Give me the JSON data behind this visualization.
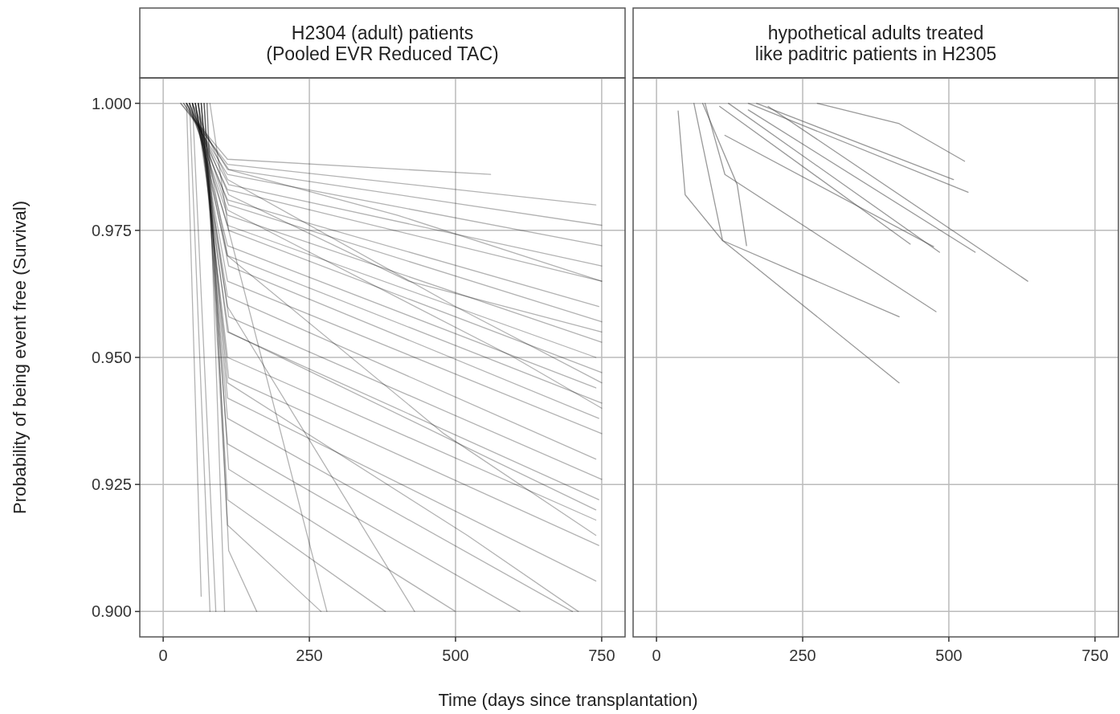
{
  "chart_data": [
    {
      "type": "line",
      "title": "H2304 (adult) patients\n(Pooled EVR Reduced TAC)",
      "xlabel": "Time (days since transplantation)",
      "ylabel": "Probability of being event free (Survival)",
      "xlim": [
        -40,
        790
      ],
      "ylim": [
        0.895,
        1.005
      ],
      "xticks": [
        0,
        250,
        500,
        750
      ],
      "yticks": [
        {
          "value": 0.9,
          "label": "0.900"
        },
        {
          "value": 0.925,
          "label": "0.925"
        },
        {
          "value": 0.95,
          "label": "0.950"
        },
        {
          "value": 0.975,
          "label": "0.975"
        },
        {
          "value": 1,
          "label": "1.000"
        }
      ],
      "grid": true,
      "series": [
        {
          "color": "#000000",
          "x": [
            30,
            110,
            560
          ],
          "values": [
            1,
            0.989,
            0.986
          ]
        },
        {
          "color": "#000000",
          "x": [
            30,
            110,
            740
          ],
          "values": [
            1,
            0.988,
            0.98
          ]
        },
        {
          "color": "#000000",
          "x": [
            35,
            112,
            750
          ],
          "values": [
            1,
            0.987,
            0.976
          ]
        },
        {
          "color": "#000000",
          "x": [
            35,
            110,
            750
          ],
          "values": [
            1,
            0.986,
            0.972
          ]
        },
        {
          "color": "#000000",
          "x": [
            40,
            112,
            750
          ],
          "values": [
            1,
            0.984,
            0.968
          ]
        },
        {
          "color": "#000000",
          "x": [
            40,
            110,
            750
          ],
          "values": [
            1,
            0.983,
            0.965
          ]
        },
        {
          "color": "#000000",
          "x": [
            40,
            110,
            745
          ],
          "values": [
            1,
            0.981,
            0.96
          ]
        },
        {
          "color": "#000000",
          "x": [
            45,
            112,
            750
          ],
          "values": [
            1,
            0.98,
            0.957
          ]
        },
        {
          "color": "#000000",
          "x": [
            45,
            110,
            750
          ],
          "values": [
            1,
            0.978,
            0.953
          ]
        },
        {
          "color": "#000000",
          "x": [
            45,
            110,
            740
          ],
          "values": [
            1,
            0.976,
            0.95
          ]
        },
        {
          "color": "#000000",
          "x": [
            50,
            112,
            750
          ],
          "values": [
            1,
            0.975,
            0.947
          ]
        },
        {
          "color": "#000000",
          "x": [
            50,
            110,
            740
          ],
          "values": [
            1,
            0.972,
            0.944
          ]
        },
        {
          "color": "#000000",
          "x": [
            50,
            110,
            750
          ],
          "values": [
            1,
            0.97,
            0.941
          ]
        },
        {
          "color": "#000000",
          "x": [
            55,
            112,
            745
          ],
          "values": [
            1,
            0.968,
            0.938
          ]
        },
        {
          "color": "#000000",
          "x": [
            55,
            110,
            750
          ],
          "values": [
            1,
            0.965,
            0.935
          ]
        },
        {
          "color": "#000000",
          "x": [
            55,
            110,
            740
          ],
          "values": [
            1,
            0.962,
            0.93
          ]
        },
        {
          "color": "#000000",
          "x": [
            60,
            112,
            750
          ],
          "values": [
            1,
            0.958,
            0.926
          ]
        },
        {
          "color": "#000000",
          "x": [
            60,
            110,
            745
          ],
          "values": [
            1,
            0.955,
            0.922
          ]
        },
        {
          "color": "#000000",
          "x": [
            60,
            110,
            740
          ],
          "values": [
            1,
            0.95,
            0.918
          ]
        },
        {
          "color": "#000000",
          "x": [
            60,
            112,
            745
          ],
          "values": [
            1,
            0.946,
            0.913
          ]
        },
        {
          "color": "#000000",
          "x": [
            65,
            110,
            740
          ],
          "values": [
            1,
            0.942,
            0.906
          ]
        },
        {
          "color": "#000000",
          "x": [
            65,
            110,
            700
          ],
          "values": [
            1,
            0.938,
            0.9
          ]
        },
        {
          "color": "#000000",
          "x": [
            65,
            110,
            610
          ],
          "values": [
            1,
            0.933,
            0.9
          ]
        },
        {
          "color": "#000000",
          "x": [
            70,
            112,
            500
          ],
          "values": [
            1,
            0.928,
            0.9
          ]
        },
        {
          "color": "#000000",
          "x": [
            70,
            110,
            380
          ],
          "values": [
            1,
            0.922,
            0.9
          ]
        },
        {
          "color": "#000000",
          "x": [
            70,
            110,
            270
          ],
          "values": [
            1,
            0.917,
            0.9
          ]
        },
        {
          "color": "#000000",
          "x": [
            75,
            112,
            160
          ],
          "values": [
            1,
            0.912,
            0.9
          ]
        },
        {
          "color": "#000000",
          "x": [
            75,
            105
          ],
          "values": [
            1,
            0.9
          ]
        },
        {
          "color": "#000000",
          "x": [
            50,
            90
          ],
          "values": [
            1,
            0.9
          ]
        },
        {
          "color": "#000000",
          "x": [
            40,
            65
          ],
          "values": [
            1,
            0.903
          ]
        },
        {
          "color": "#000000",
          "x": [
            45,
            80
          ],
          "values": [
            1,
            0.9
          ]
        },
        {
          "color": "#000000",
          "x": [
            80,
            112,
            280
          ],
          "values": [
            1,
            0.975,
            0.9
          ]
        },
        {
          "color": "#000000",
          "x": [
            55,
            110,
            430
          ],
          "values": [
            1,
            0.96,
            0.9
          ]
        },
        {
          "color": "#000000",
          "x": [
            50,
            110,
            500,
            750
          ],
          "values": [
            1,
            0.985,
            0.96,
            0.945
          ]
        },
        {
          "color": "#000000",
          "x": [
            45,
            112,
            420,
            750
          ],
          "values": [
            1,
            0.982,
            0.965,
            0.955
          ]
        },
        {
          "color": "#000000",
          "x": [
            60,
            110,
            480,
            740
          ],
          "values": [
            1,
            0.97,
            0.935,
            0.915
          ]
        },
        {
          "color": "#000000",
          "x": [
            40,
            110,
            400,
            750
          ],
          "values": [
            1,
            0.987,
            0.978,
            0.965
          ]
        },
        {
          "color": "#000000",
          "x": [
            65,
            110,
            520,
            710
          ],
          "values": [
            1,
            0.945,
            0.915,
            0.9
          ]
        },
        {
          "color": "#000000",
          "x": [
            55,
            112,
            560,
            740
          ],
          "values": [
            1,
            0.955,
            0.93,
            0.92
          ]
        },
        {
          "color": "#000000",
          "x": [
            50,
            110,
            600,
            750
          ],
          "values": [
            1,
            0.979,
            0.95,
            0.94
          ]
        }
      ]
    },
    {
      "type": "line",
      "title": "hypothetical adults treated\nlike paditric patients in H2305",
      "xlim": [
        -40,
        790
      ],
      "ylim": [
        0.895,
        1.005
      ],
      "xticks": [
        0,
        250,
        500,
        750
      ],
      "yticks": [
        0.9,
        0.925,
        0.95,
        0.975,
        1
      ],
      "tick_labels": "x",
      "grid": true,
      "series": [
        {
          "color": "#555555",
          "x": [
            37,
            49,
            113,
            415
          ],
          "values": [
            0.9985,
            0.982,
            0.973,
            0.945
          ]
        },
        {
          "color": "#555555",
          "x": [
            64,
            113,
            415
          ],
          "values": [
            1,
            0.973,
            0.958
          ]
        },
        {
          "color": "#555555",
          "x": [
            83,
            117,
            478
          ],
          "values": [
            1,
            0.986,
            0.959
          ]
        },
        {
          "color": "#555555",
          "x": [
            275,
            415,
            527
          ],
          "values": [
            1,
            0.996,
            0.9886
          ]
        },
        {
          "color": "#555555",
          "x": [
            157,
            533
          ],
          "values": [
            1,
            0.9825
          ]
        },
        {
          "color": "#555555",
          "x": [
            171,
            508
          ],
          "values": [
            1,
            0.985
          ]
        },
        {
          "color": "#555555",
          "x": [
            191,
            635
          ],
          "values": [
            0.9994,
            0.965
          ]
        },
        {
          "color": "#555555",
          "x": [
            157,
            545
          ],
          "values": [
            0.9987,
            0.9707
          ]
        },
        {
          "color": "#555555",
          "x": [
            123,
            484
          ],
          "values": [
            1,
            0.9707
          ]
        },
        {
          "color": "#555555",
          "x": [
            108,
            434
          ],
          "values": [
            0.9994,
            0.9723
          ]
        },
        {
          "color": "#555555",
          "x": [
            79,
            138,
            154
          ],
          "values": [
            1,
            0.984,
            0.972
          ]
        },
        {
          "color": "#555555",
          "x": [
            117,
            474
          ],
          "values": [
            0.9937,
            0.9718
          ]
        }
      ]
    }
  ]
}
